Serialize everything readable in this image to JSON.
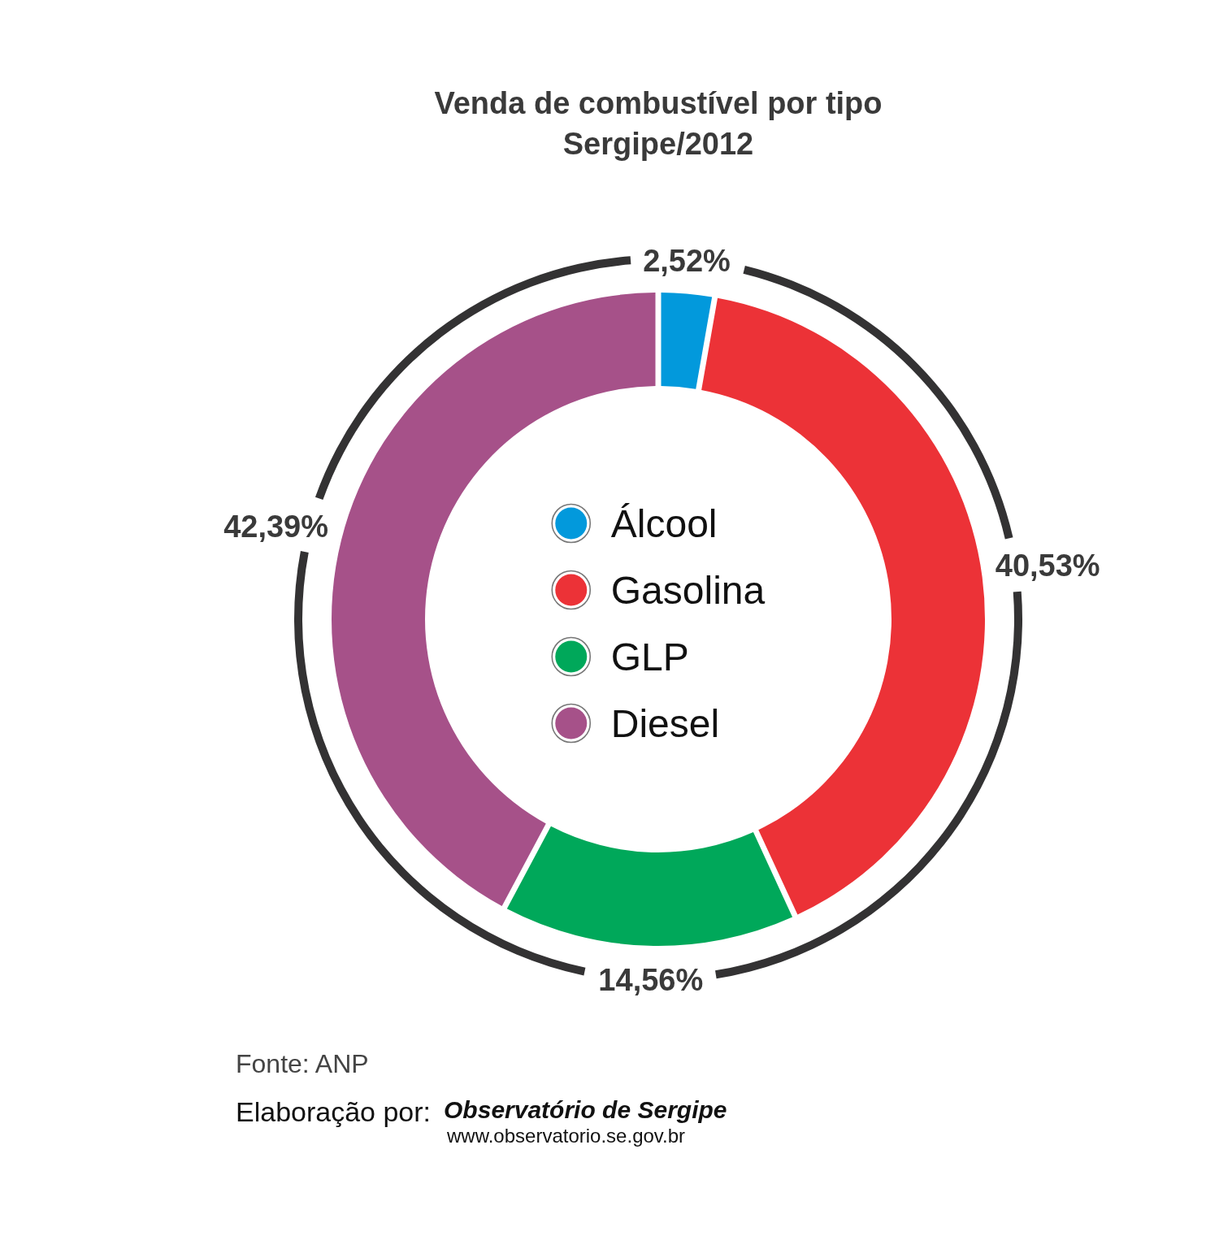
{
  "chart_data": {
    "type": "donut",
    "title": "Venda de combustível por tipo",
    "subtitle": "Sergipe/2012",
    "categories": [
      "Álcool",
      "Gasolina",
      "GLP",
      "Diesel"
    ],
    "values": [
      2.52,
      40.53,
      14.56,
      42.39
    ],
    "colors": [
      "#0299dc",
      "#ec3237",
      "#00a85a",
      "#a65189"
    ],
    "value_labels": [
      "2,52%",
      "40,53%",
      "14,56%",
      "42,39%"
    ],
    "legend": "center",
    "annotations": [
      "Fonte: ANP",
      "Elaboração por:",
      "Observatório de Sergipe",
      "www.observatorio.se.gov.br"
    ]
  }
}
